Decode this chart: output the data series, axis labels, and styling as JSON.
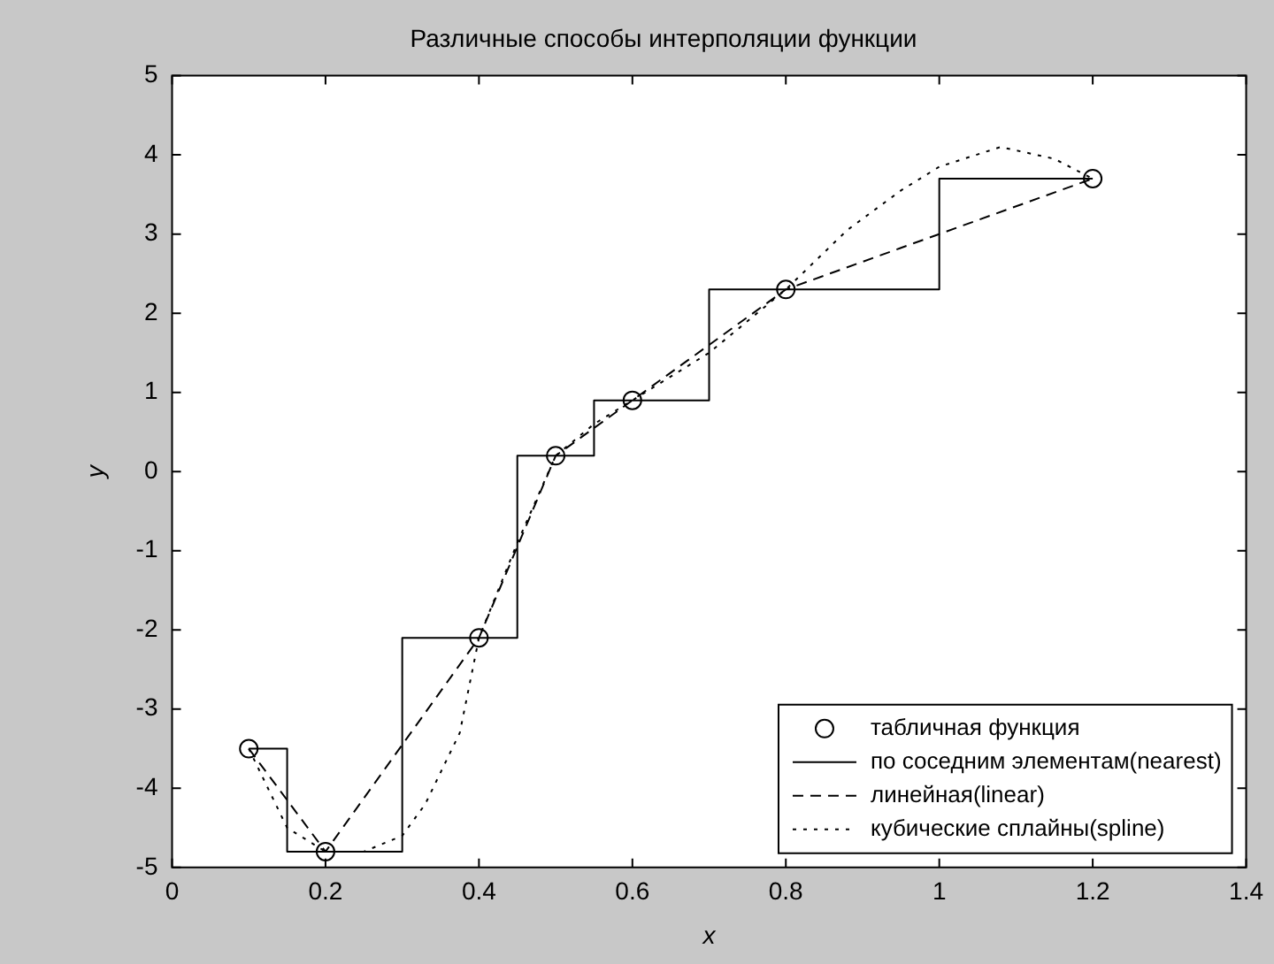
{
  "chart_data": {
    "type": "line",
    "title": "Различные способы интерполяции функции",
    "xlabel": "x",
    "ylabel": "y",
    "xlim": [
      0,
      1.4
    ],
    "xticks": [
      0,
      0.2,
      0.4,
      0.6,
      0.8,
      1,
      1.2,
      1.4
    ],
    "ylim": [
      -5,
      5
    ],
    "yticks": [
      -5,
      -4,
      -3,
      -2,
      -1,
      0,
      1,
      2,
      3,
      4,
      5
    ],
    "grid": false,
    "legend": "bottom right",
    "series": [
      {
        "name": "табличная функция",
        "type": "scatter",
        "marker": "circle",
        "color": "#000000",
        "x": [
          0.1,
          0.2,
          0.4,
          0.5,
          0.6,
          0.8,
          1.2
        ],
        "values": [
          -3.5,
          -4.8,
          -2.1,
          0.2,
          0.9,
          2.3,
          3.7
        ]
      },
      {
        "name": "по соседним элементам(nearest)",
        "color": "#000000",
        "line_style": "solid",
        "x": [
          0.1,
          0.15,
          0.15,
          0.3,
          0.3,
          0.45,
          0.45,
          0.55,
          0.55,
          0.7,
          0.7,
          1.0,
          1.0,
          1.2
        ],
        "values": [
          -3.5,
          -3.5,
          -4.8,
          -4.8,
          -2.1,
          -2.1,
          0.2,
          0.2,
          0.9,
          0.9,
          2.3,
          2.3,
          3.7,
          3.7
        ]
      },
      {
        "name": "линейная(linear)",
        "color": "#000000",
        "line_style": "dashed",
        "x": [
          0.1,
          0.2,
          0.4,
          0.5,
          0.6,
          0.8,
          1.2
        ],
        "values": [
          -3.5,
          -4.8,
          -2.1,
          0.2,
          0.9,
          2.3,
          3.7
        ]
      },
      {
        "name": "кубические сплайны(spline)",
        "color": "#000000",
        "line_style": "dotted",
        "x": [
          0.1,
          0.15,
          0.2,
          0.25,
          0.3,
          0.33,
          0.375,
          0.4,
          0.45,
          0.5,
          0.55,
          0.6,
          0.7,
          0.8,
          0.88,
          0.95,
          1.0,
          1.08,
          1.15,
          1.2
        ],
        "values": [
          -3.5,
          -4.5,
          -4.8,
          -4.8,
          -4.6,
          -4.2,
          -3.3,
          -2.1,
          -0.9,
          0.2,
          0.6,
          0.9,
          1.5,
          2.3,
          3.05,
          3.55,
          3.85,
          4.1,
          3.95,
          3.7
        ]
      }
    ]
  }
}
